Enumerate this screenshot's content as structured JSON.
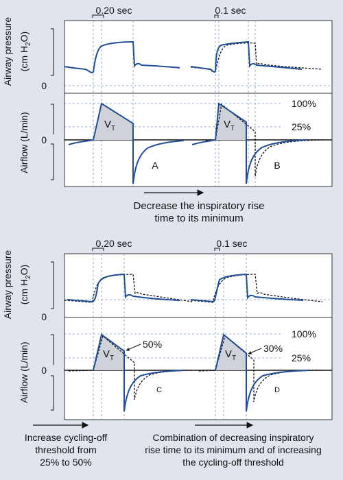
{
  "top_panel": {
    "rise_time_a": "0.20 sec",
    "rise_time_b": "0.1 sec",
    "pressure_label_line1": "Airway pressure",
    "pressure_label_line2": "(cm H",
    "pressure_label_sub": "2",
    "pressure_label_close": "O)",
    "pressure_zero": "0",
    "flow_label": "Airflow (L/min)",
    "flow_zero": "0",
    "pct_100": "100%",
    "pct_25": "25%",
    "vt_main": "V",
    "vt_sub": "T",
    "label_a": "A",
    "label_b": "B"
  },
  "caption_top": {
    "line1": "Decrease the inspiratory rise",
    "line2": "time to its minimum"
  },
  "bottom_panel": {
    "rise_time_c": "0.20 sec",
    "rise_time_d": "0.1 sec",
    "pressure_label_line1": "Airway pressure",
    "pressure_label_line2": "(cm H",
    "pressure_label_sub": "2",
    "pressure_label_close": "O)",
    "pressure_zero": "0",
    "flow_label": "Airflow (L/min)",
    "flow_zero": "0",
    "pct_100": "100%",
    "pct_25": "25%",
    "cycle_c": "50%",
    "cycle_d": "30%",
    "vt_main": "V",
    "vt_sub": "T",
    "label_c": "C",
    "label_d": "D"
  },
  "caption_bottom_left": {
    "line1": "Increase cycling-off",
    "line2": "threshold from",
    "line3": "25% to 50%"
  },
  "caption_bottom_right": {
    "line1": "Combination of decreasing inspiratory",
    "line2": "rise time to its minimum and of increasing",
    "line3": "the cycling-off threshold"
  },
  "colors": {
    "background": "#dfe4ed",
    "panel": "#ffffff",
    "trace_solid": "#1f4e96",
    "trace_dashed": "#111111",
    "guide": "#7d93b8",
    "vt_fill": "#cfd3d9"
  }
}
